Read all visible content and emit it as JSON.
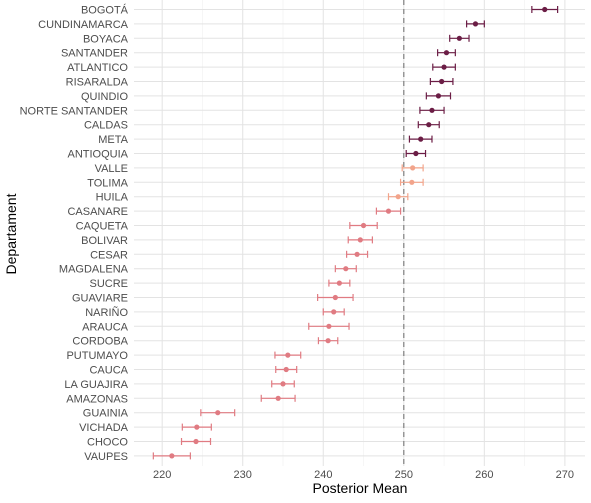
{
  "chart_data": {
    "type": "scatter",
    "subtype": "point-range",
    "title": "",
    "xlabel": "Posterior Mean",
    "ylabel": "Departament",
    "xlim": [
      216.5,
      272.5
    ],
    "x_ticks": [
      220,
      230,
      240,
      250,
      260,
      270
    ],
    "reference_line": {
      "x": 250,
      "style": "dashed",
      "color": "#808080"
    },
    "grid": true,
    "legend": "none",
    "colors": {
      "high": "#6b1d45",
      "mid": "#f2a48b",
      "low": "#e07b82"
    },
    "points": [
      {
        "label": "BOGOTÁ",
        "mean": 267.5,
        "lower": 265.9,
        "upper": 269.1,
        "group": "high"
      },
      {
        "label": "CUNDINAMARCA",
        "mean": 258.9,
        "lower": 257.8,
        "upper": 260.0,
        "group": "high"
      },
      {
        "label": "BOYACA",
        "mean": 256.9,
        "lower": 255.7,
        "upper": 258.1,
        "group": "high"
      },
      {
        "label": "SANTANDER",
        "mean": 255.3,
        "lower": 254.2,
        "upper": 256.4,
        "group": "high"
      },
      {
        "label": "ATLANTICO",
        "mean": 255.0,
        "lower": 253.6,
        "upper": 256.4,
        "group": "high"
      },
      {
        "label": "RISARALDA",
        "mean": 254.7,
        "lower": 253.3,
        "upper": 256.1,
        "group": "high"
      },
      {
        "label": "QUINDIO",
        "mean": 254.3,
        "lower": 252.8,
        "upper": 255.8,
        "group": "high"
      },
      {
        "label": "NORTE SANTANDER",
        "mean": 253.5,
        "lower": 252.0,
        "upper": 255.0,
        "group": "high"
      },
      {
        "label": "CALDAS",
        "mean": 253.1,
        "lower": 251.8,
        "upper": 254.4,
        "group": "high"
      },
      {
        "label": "META",
        "mean": 252.1,
        "lower": 250.7,
        "upper": 253.5,
        "group": "high"
      },
      {
        "label": "ANTIOQUIA",
        "mean": 251.5,
        "lower": 250.3,
        "upper": 252.7,
        "group": "high"
      },
      {
        "label": "VALLE",
        "mean": 251.1,
        "lower": 249.8,
        "upper": 252.4,
        "group": "mid"
      },
      {
        "label": "TOLIMA",
        "mean": 251.0,
        "lower": 249.6,
        "upper": 252.4,
        "group": "mid"
      },
      {
        "label": "HUILA",
        "mean": 249.3,
        "lower": 248.1,
        "upper": 250.5,
        "group": "mid"
      },
      {
        "label": "CASANARE",
        "mean": 248.1,
        "lower": 246.6,
        "upper": 249.6,
        "group": "low"
      },
      {
        "label": "CAQUETA",
        "mean": 245.0,
        "lower": 243.3,
        "upper": 246.7,
        "group": "low"
      },
      {
        "label": "BOLIVAR",
        "mean": 244.6,
        "lower": 243.1,
        "upper": 246.1,
        "group": "low"
      },
      {
        "label": "CESAR",
        "mean": 244.2,
        "lower": 242.9,
        "upper": 245.5,
        "group": "low"
      },
      {
        "label": "MAGDALENA",
        "mean": 242.8,
        "lower": 241.5,
        "upper": 244.1,
        "group": "low"
      },
      {
        "label": "SUCRE",
        "mean": 242.0,
        "lower": 240.7,
        "upper": 243.3,
        "group": "low"
      },
      {
        "label": "GUAVIARE",
        "mean": 241.5,
        "lower": 239.3,
        "upper": 243.7,
        "group": "low"
      },
      {
        "label": "NARIÑO",
        "mean": 241.3,
        "lower": 240.0,
        "upper": 242.6,
        "group": "low"
      },
      {
        "label": "ARAUCA",
        "mean": 240.7,
        "lower": 238.2,
        "upper": 243.2,
        "group": "low"
      },
      {
        "label": "CORDOBA",
        "mean": 240.6,
        "lower": 239.4,
        "upper": 241.8,
        "group": "low"
      },
      {
        "label": "PUTUMAYO",
        "mean": 235.6,
        "lower": 234.0,
        "upper": 237.2,
        "group": "low"
      },
      {
        "label": "CAUCA",
        "mean": 235.4,
        "lower": 234.1,
        "upper": 236.7,
        "group": "low"
      },
      {
        "label": "LA GUAJIRA",
        "mean": 235.0,
        "lower": 233.6,
        "upper": 236.4,
        "group": "low"
      },
      {
        "label": "AMAZONAS",
        "mean": 234.4,
        "lower": 232.3,
        "upper": 236.5,
        "group": "low"
      },
      {
        "label": "GUAINIA",
        "mean": 226.9,
        "lower": 224.8,
        "upper": 229.0,
        "group": "low"
      },
      {
        "label": "VICHADA",
        "mean": 224.3,
        "lower": 222.5,
        "upper": 226.1,
        "group": "low"
      },
      {
        "label": "CHOCO",
        "mean": 224.2,
        "lower": 222.4,
        "upper": 226.0,
        "group": "low"
      },
      {
        "label": "VAUPES",
        "mean": 221.2,
        "lower": 218.9,
        "upper": 223.5,
        "group": "low"
      }
    ]
  }
}
